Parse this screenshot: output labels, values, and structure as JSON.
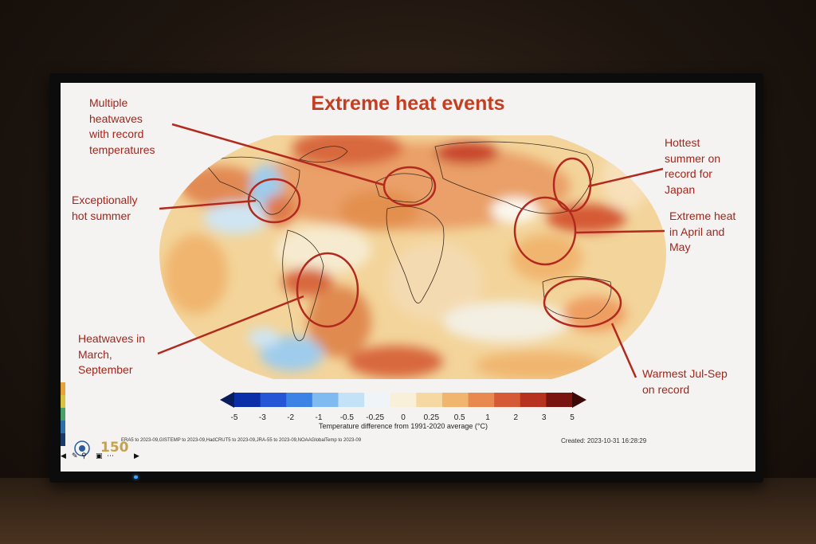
{
  "slide": {
    "title": "Extreme heat events",
    "annotations": [
      "Multiple\nheatwaves\nwith record\ntemperatures",
      "Exceptionally\nhot summer",
      "Heatwaves in\nMarch,\nSeptember",
      "Hottest\nsummer on\nrecord for\nJapan",
      "Extreme heat\nin April and\nMay",
      "Warmest Jul-Sep\non record"
    ],
    "colorbar": {
      "ticks": [
        "-5",
        "-3",
        "-2",
        "-1",
        "-0.5",
        "-0.25",
        "0",
        "0.25",
        "0.5",
        "1",
        "2",
        "3",
        "5"
      ],
      "colors": [
        "#0a2ea8",
        "#2456d6",
        "#3b84e6",
        "#7fbaf0",
        "#c4e2f7",
        "#eef4f8",
        "#f8f0d8",
        "#f6d9a2",
        "#f0b670",
        "#e88a50",
        "#d55a36",
        "#b83220",
        "#7a1410"
      ],
      "caption": "Temperature difference from 1991-2020 average (°C)"
    },
    "sources": "ERA5 to 2023-09,GISTEMP to 2023-09,HadCRUT5 to 2023-09,JRA-55 to 2023-09,NOAAGlobalTemp to 2023-09",
    "created": "Created: 2023-10-31 16:28:29",
    "logo_text": "150"
  },
  "colors": {
    "title": "#c43e22",
    "annotation": "#a3251b",
    "circle": "#b2291e"
  },
  "icons": [
    "wmo-emblem-icon",
    "pen-icon",
    "zoom-icon",
    "captions-icon",
    "more-icon",
    "prev-icon",
    "next-icon"
  ]
}
